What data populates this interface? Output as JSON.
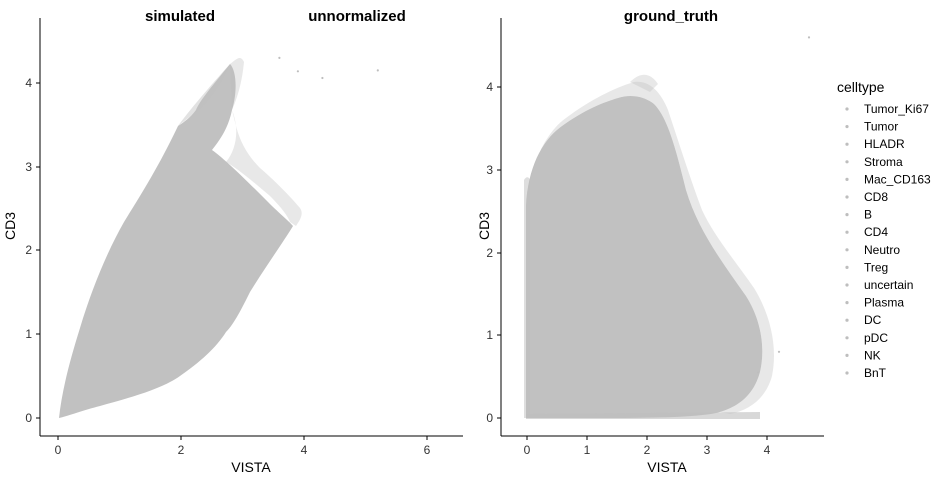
{
  "chart_data": [
    {
      "type": "scatter",
      "title": "simulated",
      "subtitle": "unnormalized",
      "xlabel": "VISTA",
      "ylabel": "CD3",
      "xlim": [
        -0.3,
        6.6
      ],
      "ylim": [
        -0.2,
        4.8
      ],
      "xticks": [
        "0",
        "2",
        "4",
        "6"
      ],
      "yticks": [
        "0",
        "1",
        "2",
        "3",
        "4"
      ],
      "grid": false,
      "point_color": "#bebebe",
      "outliers": [
        [
          3.9,
          4.14
        ],
        [
          4.3,
          4.06
        ],
        [
          5.2,
          4.15
        ],
        [
          3.6,
          4.3
        ]
      ]
    },
    {
      "type": "scatter",
      "title": "ground_truth",
      "xlabel": "VISTA",
      "ylabel": "CD3",
      "xlim": [
        -0.25,
        4.9
      ],
      "ylim": [
        -0.2,
        4.8
      ],
      "xticks": [
        "0",
        "1",
        "2",
        "3",
        "4"
      ],
      "yticks": [
        "0",
        "1",
        "2",
        "3",
        "4"
      ],
      "grid": false,
      "point_color": "#bebebe",
      "outliers": [
        [
          4.7,
          4.6
        ],
        [
          3.85,
          0.55
        ],
        [
          4.2,
          0.8
        ]
      ]
    }
  ],
  "legend": {
    "title": "celltype",
    "placement": "right",
    "items": [
      "Tumor_Ki67",
      "Tumor",
      "HLADR",
      "Stroma",
      "Mac_CD163",
      "CD8",
      "B",
      "CD4",
      "Neutro",
      "Treg",
      "uncertain",
      "Plasma",
      "DC",
      "pDC",
      "NK",
      "BnT"
    ]
  }
}
